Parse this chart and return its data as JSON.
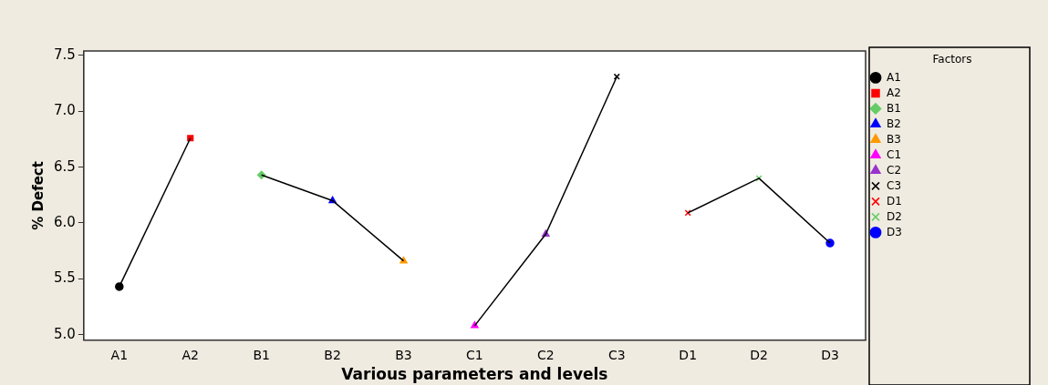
{
  "chart_data": {
    "type": "scatter",
    "xlabel": "Various parameters and levels",
    "ylabel": "% Defect",
    "legend_title": "Factors",
    "legend": "right",
    "grid": false,
    "categories": [
      "A1",
      "A2",
      "B1",
      "B2",
      "B3",
      "C1",
      "C2",
      "C3",
      "D1",
      "D2",
      "D3"
    ],
    "ylim": [
      4.95,
      7.54
    ],
    "yticks": [
      {
        "value": 5,
        "label": "5.0"
      },
      {
        "value": 5.5,
        "label": "5.5"
      },
      {
        "value": 6,
        "label": "6.0"
      },
      {
        "value": 6.5,
        "label": "6.5"
      },
      {
        "value": 7,
        "label": "7.0"
      },
      {
        "value": 7.5,
        "label": "7.5"
      }
    ],
    "series": [
      {
        "type": "line",
        "color": "#000000",
        "marker": "none",
        "values": [
          5.43,
          6.76,
          null,
          null,
          null,
          null,
          null,
          null,
          null,
          null,
          null
        ]
      },
      {
        "type": "line",
        "color": "#000000",
        "marker": "none",
        "values": [
          null,
          null,
          6.43,
          6.2,
          5.66,
          null,
          null,
          null,
          null,
          null,
          null
        ]
      },
      {
        "type": "line",
        "color": "#000000",
        "marker": "none",
        "values": [
          null,
          null,
          null,
          null,
          null,
          5.08,
          5.9,
          7.31,
          null,
          null,
          null
        ]
      },
      {
        "type": "line",
        "color": "#000000",
        "marker": "none",
        "values": [
          null,
          null,
          null,
          null,
          null,
          null,
          null,
          null,
          6.09,
          6.4,
          5.82
        ]
      },
      {
        "name": "A1",
        "color": "#000000",
        "marker": "circle",
        "values": [
          5.43,
          null,
          null,
          null,
          null,
          null,
          null,
          null,
          null,
          null,
          null
        ]
      },
      {
        "name": "A2",
        "color": "#ff0000",
        "marker": "square",
        "values": [
          null,
          6.76,
          null,
          null,
          null,
          null,
          null,
          null,
          null,
          null,
          null
        ]
      },
      {
        "name": "B1",
        "color": "#66cc66",
        "marker": "diamond",
        "values": [
          null,
          null,
          6.43,
          null,
          null,
          null,
          null,
          null,
          null,
          null,
          null
        ]
      },
      {
        "name": "B2",
        "color": "#0000ff",
        "marker": "triangle",
        "values": [
          null,
          null,
          null,
          6.2,
          null,
          null,
          null,
          null,
          null,
          null,
          null
        ]
      },
      {
        "name": "B3",
        "color": "#ff9900",
        "marker": "triangle",
        "values": [
          null,
          null,
          null,
          null,
          5.66,
          null,
          null,
          null,
          null,
          null,
          null
        ]
      },
      {
        "name": "C1",
        "color": "#ff00ff",
        "marker": "triangle",
        "values": [
          null,
          null,
          null,
          null,
          null,
          5.08,
          null,
          null,
          null,
          null,
          null
        ]
      },
      {
        "name": "C2",
        "color": "#9933cc",
        "marker": "triangle",
        "values": [
          null,
          null,
          null,
          null,
          null,
          null,
          5.9,
          null,
          null,
          null,
          null
        ]
      },
      {
        "name": "C3",
        "color": "#000000",
        "marker": "cross",
        "values": [
          null,
          null,
          null,
          null,
          null,
          null,
          null,
          7.31,
          null,
          null,
          null
        ]
      },
      {
        "name": "D1",
        "color": "#ff0000",
        "marker": "cross",
        "values": [
          null,
          null,
          null,
          null,
          null,
          null,
          null,
          null,
          6.09,
          null,
          null
        ]
      },
      {
        "name": "D2",
        "color": "#66cc66",
        "marker": "cross",
        "values": [
          null,
          null,
          null,
          null,
          null,
          null,
          null,
          null,
          null,
          6.4,
          null
        ]
      },
      {
        "name": "D3",
        "color": "#0000ff",
        "marker": "circle",
        "values": [
          null,
          null,
          null,
          null,
          null,
          null,
          null,
          null,
          null,
          null,
          5.82
        ]
      }
    ]
  }
}
